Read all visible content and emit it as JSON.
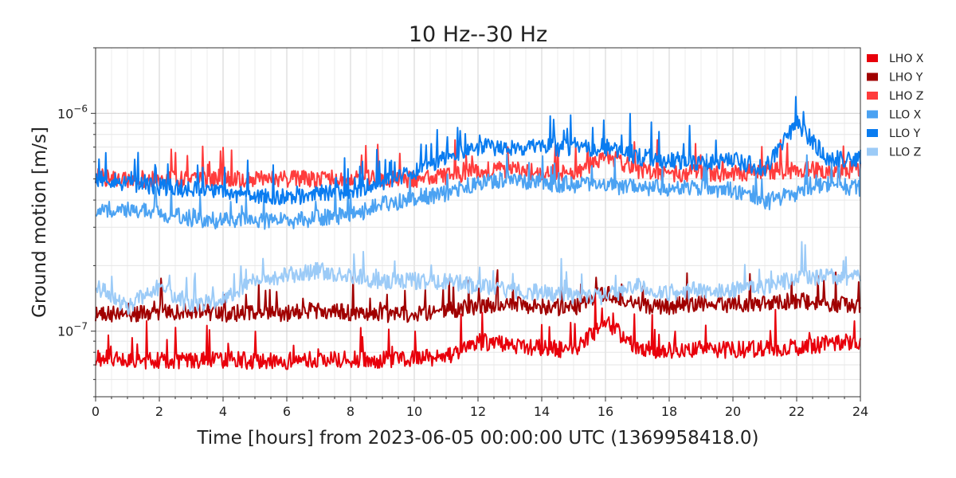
{
  "chart_data": {
    "type": "line",
    "title": "10 Hz--30 Hz",
    "xlabel": "Time [hours] from 2023-06-05 00:00:00 UTC (1369958418.0)",
    "ylabel": "Ground motion [m/s]",
    "xlim": [
      0,
      24
    ],
    "ylim": [
      5e-08,
      2e-06
    ],
    "yscale": "log",
    "grid": true,
    "legend_position": "outside-right",
    "x_ticks": [
      0,
      2,
      4,
      6,
      8,
      10,
      12,
      14,
      16,
      18,
      20,
      22,
      24
    ],
    "x_tick_labels": [
      "0",
      "2",
      "4",
      "6",
      "8",
      "10",
      "12",
      "14",
      "16",
      "18",
      "20",
      "22",
      "24"
    ],
    "y_ticks": [
      1e-07,
      1e-06
    ],
    "y_tick_labels": [
      {
        "base": "10",
        "exp": "−7"
      },
      {
        "base": "10",
        "exp": "−6"
      }
    ],
    "x": [
      0,
      1,
      2,
      3,
      4,
      5,
      6,
      7,
      8,
      9,
      10,
      11,
      12,
      13,
      14,
      15,
      16,
      17,
      18,
      19,
      20,
      21,
      22,
      23,
      24
    ],
    "series": [
      {
        "name": "LHO X",
        "color": "#e8000b",
        "values": [
          7.6e-08,
          7.4e-08,
          7.3e-08,
          7.3e-08,
          7.4e-08,
          7.3e-08,
          7.3e-08,
          7.5e-08,
          7.4e-08,
          7.4e-08,
          7.5e-08,
          7.6e-08,
          9e-08,
          8.6e-08,
          8.4e-08,
          8.2e-08,
          1.1e-07,
          8.4e-08,
          8.1e-08,
          8.3e-08,
          8.2e-08,
          8.3e-08,
          8.4e-08,
          8.8e-08,
          9e-08
        ]
      },
      {
        "name": "LHO Y",
        "color": "#a00000",
        "values": [
          1.2e-07,
          1.2e-07,
          1.22e-07,
          1.25e-07,
          1.2e-07,
          1.22e-07,
          1.2e-07,
          1.25e-07,
          1.22e-07,
          1.2e-07,
          1.2e-07,
          1.25e-07,
          1.3e-07,
          1.32e-07,
          1.3e-07,
          1.28e-07,
          1.5e-07,
          1.32e-07,
          1.3e-07,
          1.35e-07,
          1.33e-07,
          1.35e-07,
          1.38e-07,
          1.33e-07,
          1.32e-07
        ]
      },
      {
        "name": "LHO Z",
        "color": "#ff3c3c",
        "values": [
          5.1e-07,
          5e-07,
          5e-07,
          5e-07,
          5e-07,
          5e-07,
          5e-07,
          5e-07,
          5.1e-07,
          5e-07,
          5e-07,
          5.1e-07,
          5.5e-07,
          5.5e-07,
          5.4e-07,
          5.3e-07,
          6.4e-07,
          5.5e-07,
          5.3e-07,
          5.3e-07,
          5.3e-07,
          5.4e-07,
          5.5e-07,
          5.5e-07,
          5.5e-07
        ]
      },
      {
        "name": "LLO X",
        "color": "#4ba2f2",
        "values": [
          3.6e-07,
          3.6e-07,
          3.5e-07,
          3.3e-07,
          3.2e-07,
          3.2e-07,
          3.2e-07,
          3.3e-07,
          3.4e-07,
          3.8e-07,
          4.1e-07,
          4.3e-07,
          4.8e-07,
          5e-07,
          4.8e-07,
          4.7e-07,
          4.6e-07,
          4.6e-07,
          4.5e-07,
          4.6e-07,
          4.4e-07,
          3.9e-07,
          4.3e-07,
          4.8e-07,
          4.5e-07
        ]
      },
      {
        "name": "LLO Y",
        "color": "#0a7cf0",
        "values": [
          5e-07,
          4.8e-07,
          4.6e-07,
          4.5e-07,
          4.3e-07,
          4.2e-07,
          4.1e-07,
          4.3e-07,
          4.4e-07,
          4.8e-07,
          5.4e-07,
          6.3e-07,
          7e-07,
          7e-07,
          7e-07,
          6.9e-07,
          7e-07,
          6.3e-07,
          6.1e-07,
          6e-07,
          6.1e-07,
          5.6e-07,
          9e-07,
          6.2e-07,
          6.2e-07
        ]
      },
      {
        "name": "LLO Z",
        "color": "#9ccbf7",
        "values": [
          1.6e-07,
          1.3e-07,
          1.6e-07,
          1.3e-07,
          1.4e-07,
          1.7e-07,
          1.8e-07,
          1.9e-07,
          1.8e-07,
          1.7e-07,
          1.7e-07,
          1.7e-07,
          1.6e-07,
          1.55e-07,
          1.5e-07,
          1.45e-07,
          1.45e-07,
          1.6e-07,
          1.5e-07,
          1.55e-07,
          1.55e-07,
          1.6e-07,
          1.75e-07,
          1.8e-07,
          1.75e-07
        ]
      }
    ]
  }
}
